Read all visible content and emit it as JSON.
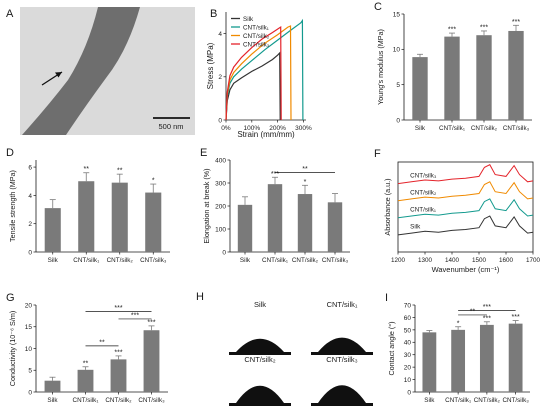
{
  "colors": {
    "bar": "#7a7a7a",
    "axis": "#1a1a1a",
    "silk": "#333333",
    "cnt_silk1": "#139a8e",
    "cnt_silk2": "#f08a00",
    "cnt_silk3": "#e4242b",
    "tem_bg": "#dadada",
    "fiber": "#6e6e6e",
    "drop": "#101010"
  },
  "panel_a": {
    "label": "A",
    "scalebar": "500 nm"
  },
  "panel_h": {
    "label": "H",
    "droplets": [
      {
        "label": "Silk",
        "height": 0.55
      },
      {
        "label": "CNT/silk₁",
        "height": 0.6
      },
      {
        "label": "CNT/silk₂",
        "height": 0.72
      },
      {
        "label": "CNT/silk₃",
        "height": 0.74
      }
    ]
  },
  "chart_data": [
    {
      "panel": "B",
      "type": "line",
      "xlabel": "Strain (mm/mm)",
      "ylabel": "Stress (MPa)",
      "xlim": [
        0,
        3.1
      ],
      "ylim": [
        0,
        5
      ],
      "xticks": [
        0,
        1,
        2,
        3
      ],
      "xtick_labels": [
        "0%",
        "100%",
        "200%",
        "300%"
      ],
      "yticks": [
        0,
        2,
        4
      ],
      "legend_position": "top-left",
      "series": [
        {
          "name": "Silk",
          "color": "#333333",
          "x": [
            0,
            0.05,
            0.15,
            0.3,
            0.6,
            1.0,
            1.4,
            1.8,
            2.0,
            2.08,
            2.1
          ],
          "y": [
            0,
            0.9,
            1.4,
            1.7,
            1.95,
            2.25,
            2.5,
            2.8,
            3.0,
            3.1,
            0
          ]
        },
        {
          "name": "CNT/silk₁",
          "color": "#139a8e",
          "x": [
            0,
            0.05,
            0.15,
            0.3,
            0.6,
            1.0,
            1.5,
            2.0,
            2.5,
            2.9,
            2.96,
            2.98
          ],
          "y": [
            0,
            1.1,
            1.7,
            2.0,
            2.35,
            2.75,
            3.25,
            3.7,
            4.15,
            4.5,
            4.6,
            0
          ]
        },
        {
          "name": "CNT/silk₂",
          "color": "#f08a00",
          "x": [
            0,
            0.05,
            0.15,
            0.3,
            0.6,
            1.0,
            1.5,
            2.0,
            2.4,
            2.5,
            2.52
          ],
          "y": [
            0,
            1.2,
            1.85,
            2.2,
            2.6,
            3.05,
            3.55,
            3.95,
            4.3,
            4.35,
            0
          ]
        },
        {
          "name": "CNT/silk₃",
          "color": "#e4242b",
          "x": [
            0,
            0.05,
            0.15,
            0.3,
            0.6,
            1.0,
            1.4,
            1.8,
            2.05,
            2.12,
            2.14
          ],
          "y": [
            0,
            1.3,
            2.05,
            2.45,
            2.9,
            3.35,
            3.75,
            4.05,
            4.25,
            4.3,
            0
          ]
        }
      ]
    },
    {
      "panel": "C",
      "type": "bar",
      "ylabel": "Young's modulus (MPa)",
      "categories": [
        "Silk",
        "CNT/silk₁",
        "CNT/silk₂",
        "CNT/silk₃"
      ],
      "values": [
        8.9,
        11.8,
        12.0,
        12.6
      ],
      "errors": [
        0.4,
        0.5,
        0.6,
        0.8
      ],
      "significance": [
        "",
        "***",
        "***",
        "***"
      ],
      "ylim": [
        0,
        15
      ],
      "yticks": [
        0,
        5,
        10,
        15
      ]
    },
    {
      "panel": "D",
      "type": "bar",
      "ylabel": "Tensile strength (MPa)",
      "categories": [
        "Silk",
        "CNT/silk₁",
        "CNT/silk₂",
        "CNT/silk₃"
      ],
      "values": [
        3.1,
        5.0,
        4.9,
        4.2
      ],
      "errors": [
        0.6,
        0.6,
        0.6,
        0.6
      ],
      "significance": [
        "",
        "**",
        "**",
        "*"
      ],
      "ylim": [
        0,
        6.5
      ],
      "yticks": [
        0,
        2,
        4,
        6
      ]
    },
    {
      "panel": "E",
      "type": "bar",
      "ylabel": "Elongation at break (%)",
      "categories": [
        "Silk",
        "CNT/silk₁",
        "CNT/silk₂",
        "CNT/silk₃"
      ],
      "values": [
        205,
        295,
        252,
        216
      ],
      "errors": [
        35,
        30,
        38,
        38
      ],
      "significance": [
        "",
        "***",
        "*",
        ""
      ],
      "brackets": [
        {
          "from": 1,
          "to": 3,
          "label": "**",
          "y": 345
        }
      ],
      "ylim": [
        0,
        400
      ],
      "yticks": [
        0,
        100,
        200,
        300,
        400
      ]
    },
    {
      "panel": "F",
      "type": "line",
      "xlabel": "Wavenumber (cm⁻¹)",
      "ylabel": "Absorbance (a.u.)",
      "xlim": [
        1200,
        1700
      ],
      "yticks": [],
      "xticks": [
        1200,
        1300,
        1400,
        1500,
        1600,
        1700
      ],
      "series": [
        {
          "name": "CNT/silk₃",
          "color": "#e4242b",
          "offset": 0.74,
          "x": [
            1200,
            1250,
            1300,
            1350,
            1400,
            1450,
            1500,
            1520,
            1540,
            1560,
            1600,
            1630,
            1650,
            1680,
            1700
          ],
          "y": [
            0.02,
            0.04,
            0.06,
            0.05,
            0.07,
            0.08,
            0.1,
            0.2,
            0.23,
            0.12,
            0.1,
            0.22,
            0.12,
            0.04,
            0.05
          ]
        },
        {
          "name": "CNT/silk₂",
          "color": "#f08a00",
          "offset": 0.55,
          "x": [
            1200,
            1250,
            1300,
            1350,
            1400,
            1450,
            1500,
            1520,
            1540,
            1560,
            1600,
            1630,
            1650,
            1680,
            1700
          ],
          "y": [
            0.02,
            0.04,
            0.06,
            0.05,
            0.07,
            0.08,
            0.1,
            0.2,
            0.23,
            0.12,
            0.1,
            0.22,
            0.12,
            0.04,
            0.05
          ]
        },
        {
          "name": "CNT/silk₁",
          "color": "#139a8e",
          "offset": 0.36,
          "x": [
            1200,
            1250,
            1300,
            1350,
            1400,
            1450,
            1500,
            1520,
            1540,
            1560,
            1600,
            1630,
            1650,
            1680,
            1700
          ],
          "y": [
            0.02,
            0.04,
            0.06,
            0.05,
            0.07,
            0.08,
            0.1,
            0.2,
            0.23,
            0.12,
            0.1,
            0.22,
            0.12,
            0.04,
            0.05
          ]
        },
        {
          "name": "Silk",
          "color": "#333333",
          "offset": 0.17,
          "x": [
            1200,
            1250,
            1300,
            1350,
            1400,
            1450,
            1500,
            1520,
            1540,
            1560,
            1600,
            1630,
            1650,
            1680,
            1700
          ],
          "y": [
            0.02,
            0.04,
            0.06,
            0.05,
            0.07,
            0.08,
            0.1,
            0.2,
            0.23,
            0.12,
            0.1,
            0.22,
            0.12,
            0.04,
            0.05
          ]
        }
      ]
    },
    {
      "panel": "G",
      "type": "bar",
      "ylabel": "Conductivity (10⁻⁶ S/m)",
      "categories": [
        "Silk",
        "CNT/silk₁",
        "CNT/silk₂",
        "CNT/silk₃"
      ],
      "values": [
        2.6,
        5.1,
        7.5,
        14.2
      ],
      "errors": [
        0.8,
        0.7,
        0.8,
        1.0
      ],
      "significance": [
        "",
        "**",
        "***",
        "***"
      ],
      "brackets": [
        {
          "from": 1,
          "to": 3,
          "label": "***",
          "y": 18.5
        },
        {
          "from": 2,
          "to": 3,
          "label": "***",
          "y": 16.8
        },
        {
          "from": 1,
          "to": 2,
          "label": "**",
          "y": 10.6
        }
      ],
      "ylim": [
        0,
        20
      ],
      "yticks": [
        0,
        5,
        10,
        15,
        20
      ]
    },
    {
      "panel": "I",
      "type": "bar",
      "ylabel": "Contact angle (°)",
      "categories": [
        "Silk",
        "CNT/silk₁",
        "CNT/silk₂",
        "CNT/silk₃"
      ],
      "values": [
        48,
        50,
        54,
        55
      ],
      "errors": [
        1.5,
        2.5,
        2.5,
        2.5
      ],
      "significance": [
        "",
        "*",
        "***",
        "***"
      ],
      "brackets": [
        {
          "from": 1,
          "to": 3,
          "label": "***",
          "y": 65.5
        },
        {
          "from": 1,
          "to": 2,
          "label": "**",
          "y": 62
        }
      ],
      "ylim": [
        0,
        70
      ],
      "yticks": [
        0,
        10,
        20,
        30,
        40,
        50,
        60,
        70
      ]
    }
  ]
}
